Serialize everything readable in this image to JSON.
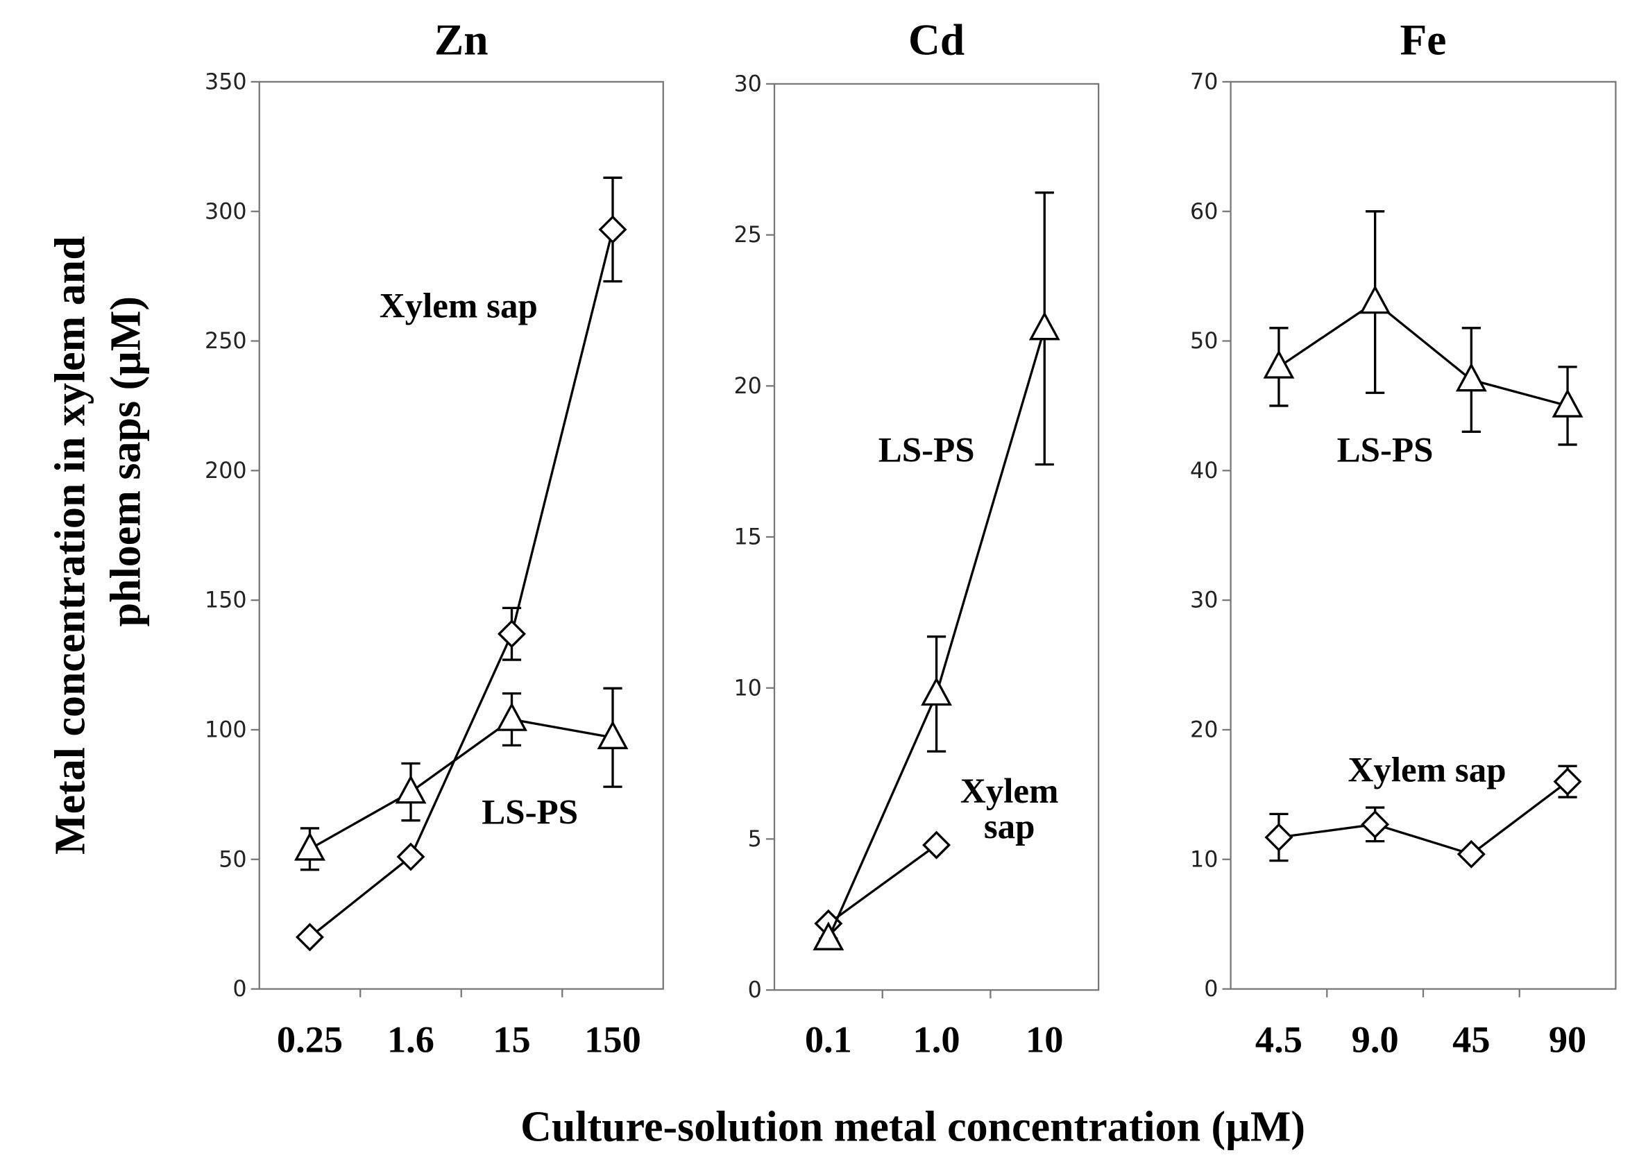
{
  "chart_data": [
    {
      "type": "line",
      "title": "Zn",
      "categories": [
        "0.25",
        "1.6",
        "15",
        "150"
      ],
      "ylim": [
        0,
        350
      ],
      "yticks": [
        0,
        50,
        100,
        150,
        200,
        250,
        300,
        350
      ],
      "series": [
        {
          "name": "Xylem sap",
          "color": "#000000",
          "marker": "diamond",
          "values": [
            20,
            51,
            137,
            293
          ],
          "errors": [
            0,
            0,
            10,
            20
          ]
        },
        {
          "name": "LS-PS",
          "color": "#000000",
          "marker": "triangle",
          "values": [
            54,
            76,
            104,
            97
          ],
          "errors": [
            8,
            11,
            10,
            19
          ]
        }
      ]
    },
    {
      "type": "line",
      "title": "Cd",
      "categories": [
        "0.1",
        "1.0",
        "10"
      ],
      "ylim": [
        0,
        30
      ],
      "yticks": [
        0,
        5,
        10,
        15,
        20,
        25,
        30
      ],
      "series": [
        {
          "name": "Xylem sap",
          "color": "#000000",
          "marker": "diamond",
          "values": [
            2.2,
            4.8,
            null
          ],
          "errors": [
            0,
            0,
            null
          ]
        },
        {
          "name": "LS-PS",
          "color": "#000000",
          "marker": "triangle",
          "values": [
            1.7,
            9.8,
            21.9
          ],
          "errors": [
            0,
            1.9,
            4.5
          ]
        }
      ]
    },
    {
      "type": "line",
      "title": "Fe",
      "categories": [
        "4.5",
        "9.0",
        "45",
        "90"
      ],
      "ylim": [
        0,
        70
      ],
      "yticks": [
        0,
        10,
        20,
        30,
        40,
        50,
        60,
        70
      ],
      "series": [
        {
          "name": "Xylem sap",
          "color": "#000000",
          "marker": "diamond",
          "values": [
            11.7,
            12.7,
            10.4,
            16
          ],
          "errors": [
            1.8,
            1.3,
            0,
            1.2
          ]
        },
        {
          "name": "LS-PS",
          "color": "#000000",
          "marker": "triangle",
          "values": [
            48,
            53,
            47,
            45
          ],
          "errors": [
            3,
            7,
            4,
            3
          ]
        }
      ]
    }
  ],
  "ylabel": [
    "Metal concentration in xylem and",
    "phloem saps (µM)"
  ],
  "xlabel": "Culture-solution metal concentration (µM)"
}
